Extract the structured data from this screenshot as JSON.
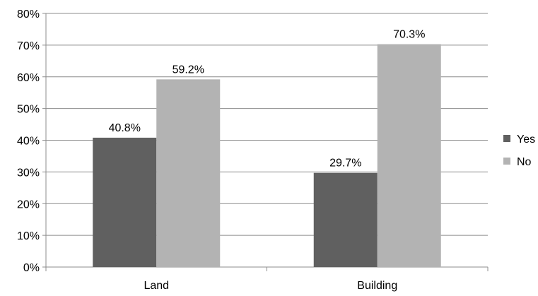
{
  "chart_data": {
    "type": "bar",
    "categories": [
      "Land",
      "Building"
    ],
    "series": [
      {
        "name": "Yes",
        "values": [
          40.8,
          29.7
        ],
        "color": "#606060"
      },
      {
        "name": "No",
        "values": [
          59.2,
          70.3
        ],
        "color": "#b3b3b3"
      }
    ],
    "data_labels": [
      [
        "40.8%",
        "29.7%"
      ],
      [
        "59.2%",
        "70.3%"
      ]
    ],
    "y_ticks": [
      0,
      10,
      20,
      30,
      40,
      50,
      60,
      70,
      80
    ],
    "y_tick_labels": [
      "0%",
      "10%",
      "20%",
      "30%",
      "40%",
      "50%",
      "60%",
      "70%",
      "80%"
    ],
    "ylim": [
      0,
      80
    ],
    "grid": true,
    "legend_position": "right",
    "title": "",
    "xlabel": "",
    "ylabel": ""
  }
}
